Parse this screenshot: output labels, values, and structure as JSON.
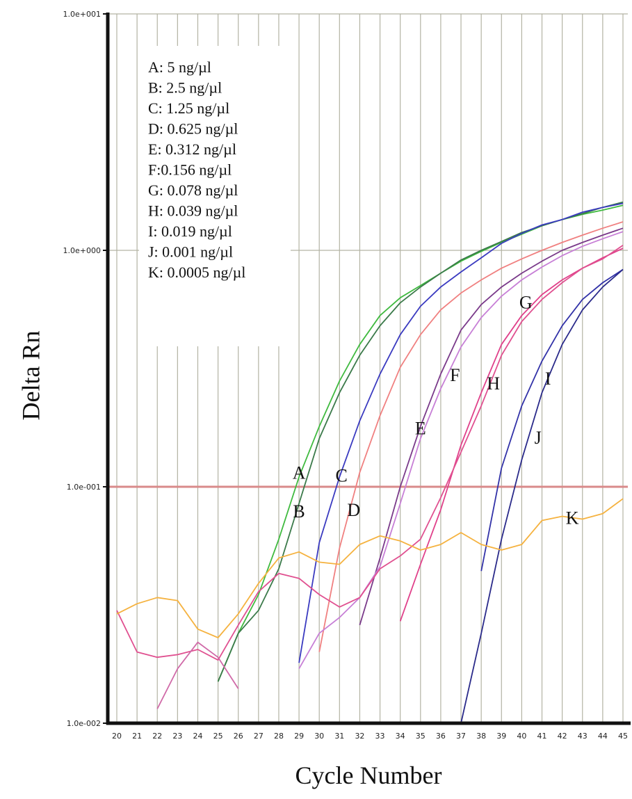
{
  "chart_data": {
    "type": "line",
    "xlabel": "Cycle Number",
    "ylabel": "Delta Rn",
    "y_scale": "log",
    "xlim": [
      20,
      45
    ],
    "ylim": [
      0.01,
      10
    ],
    "x_ticks": [
      "20",
      "21",
      "22",
      "23",
      "24",
      "25",
      "26",
      "27",
      "28",
      "29",
      "30",
      "31",
      "32",
      "33",
      "34",
      "35",
      "36",
      "37",
      "38",
      "39",
      "40",
      "41",
      "42",
      "43",
      "44",
      "45"
    ],
    "y_ticks": [
      {
        "value": 10,
        "label": "1.0e+001"
      },
      {
        "value": 1,
        "label": "1.0e+000"
      },
      {
        "value": 0.1,
        "label": "1.0e-001"
      },
      {
        "value": 0.01,
        "label": "1.0e-002"
      }
    ],
    "grid": "vertical",
    "threshold": {
      "value": 0.1,
      "color": "#d98a8a"
    },
    "legend": [
      "A: 5 ng/µl",
      "B:  2.5 ng/µl",
      "C: 1.25 ng/µl",
      "D: 0.625 ng/µl",
      "E: 0.312 ng/µl",
      "F:0.156 ng/µl",
      "G: 0.078 ng/µl",
      "H: 0.039 ng/µl",
      "I: 0.019 ng/µl",
      "J: 0.001 ng/µl",
      "K: 0.0005 ng/µl"
    ],
    "legend_position": "top-left",
    "series": [
      {
        "name": "A",
        "color": "#3fba3f",
        "label_at": [
          29.0,
          0.115
        ],
        "x": [
          25,
          26,
          27,
          28,
          29,
          30,
          31,
          32,
          33,
          34,
          35,
          36,
          37,
          38,
          39,
          40,
          41,
          42,
          43,
          44,
          45
        ],
        "y": [
          0.015,
          0.024,
          0.035,
          0.06,
          0.11,
          0.18,
          0.28,
          0.4,
          0.53,
          0.63,
          0.71,
          0.8,
          0.9,
          0.99,
          1.08,
          1.17,
          1.27,
          1.35,
          1.42,
          1.48,
          1.55
        ]
      },
      {
        "name": "B",
        "color": "#3b7a4a",
        "label_at": [
          29.0,
          0.079
        ],
        "x": [
          25,
          26,
          27,
          28,
          29,
          30,
          31,
          32,
          33,
          34,
          35,
          36,
          37,
          38,
          39,
          40,
          41,
          42,
          43,
          44,
          45
        ],
        "y": [
          0.015,
          0.024,
          0.03,
          0.045,
          0.085,
          0.16,
          0.25,
          0.36,
          0.48,
          0.6,
          0.7,
          0.8,
          0.91,
          1.0,
          1.09,
          1.19,
          1.27,
          1.35,
          1.43,
          1.52,
          1.6
        ]
      },
      {
        "name": "C",
        "color": "#3a3ac0",
        "label_at": [
          31.1,
          0.112
        ],
        "x": [
          29,
          30,
          31,
          32,
          33,
          34,
          35,
          36,
          37,
          38,
          39,
          40,
          41,
          42,
          43,
          44,
          45
        ],
        "y": [
          0.018,
          0.058,
          0.11,
          0.19,
          0.3,
          0.44,
          0.58,
          0.7,
          0.81,
          0.93,
          1.07,
          1.18,
          1.28,
          1.35,
          1.45,
          1.52,
          1.58
        ]
      },
      {
        "name": "D",
        "color": "#f08080",
        "label_at": [
          31.7,
          0.08
        ],
        "x": [
          30,
          31,
          32,
          33,
          34,
          35,
          36,
          37,
          38,
          39,
          40,
          41,
          42,
          43,
          44,
          45
        ],
        "y": [
          0.02,
          0.055,
          0.115,
          0.2,
          0.32,
          0.44,
          0.56,
          0.66,
          0.75,
          0.84,
          0.92,
          1.0,
          1.08,
          1.16,
          1.24,
          1.32
        ]
      },
      {
        "name": "E",
        "color": "#7a3a8a",
        "label_at": [
          35.0,
          0.177
        ],
        "x": [
          32,
          33,
          34,
          35,
          36,
          37,
          38,
          39,
          40,
          41,
          42,
          43,
          44,
          45
        ],
        "y": [
          0.026,
          0.05,
          0.1,
          0.18,
          0.3,
          0.46,
          0.59,
          0.7,
          0.8,
          0.9,
          1.0,
          1.08,
          1.16,
          1.24
        ]
      },
      {
        "name": "F",
        "color": "#c77fd6",
        "label_at": [
          36.7,
          0.298
        ],
        "x": [
          29,
          30,
          31,
          32,
          33,
          34,
          35,
          36,
          37,
          38,
          39,
          40,
          41,
          42,
          43,
          44,
          45
        ],
        "y": [
          0.017,
          0.024,
          0.028,
          0.034,
          0.046,
          0.085,
          0.16,
          0.26,
          0.39,
          0.52,
          0.64,
          0.75,
          0.85,
          0.95,
          1.04,
          1.12,
          1.2
        ]
      },
      {
        "name": "G",
        "color": "#e0408a",
        "label_at": [
          40.2,
          0.604
        ],
        "x": [
          34,
          35,
          36,
          37,
          38,
          39,
          40,
          41,
          42,
          43,
          44,
          45
        ],
        "y": [
          0.027,
          0.047,
          0.08,
          0.15,
          0.25,
          0.4,
          0.53,
          0.65,
          0.75,
          0.84,
          0.93,
          1.02
        ]
      },
      {
        "name": "H",
        "color": "#e05090",
        "label_at": [
          38.6,
          0.274
        ],
        "x": [
          20,
          21,
          22,
          23,
          24,
          25,
          26,
          27,
          28,
          29,
          30,
          31,
          32,
          33,
          34,
          35,
          36,
          37,
          38,
          39,
          40,
          41,
          42,
          43,
          44,
          45
        ],
        "y": [
          0.03,
          0.02,
          0.019,
          0.0195,
          0.0205,
          0.0185,
          0.026,
          0.036,
          0.043,
          0.041,
          0.035,
          0.031,
          0.034,
          0.045,
          0.051,
          0.06,
          0.09,
          0.14,
          0.22,
          0.36,
          0.5,
          0.62,
          0.73,
          0.84,
          0.92,
          1.05
        ]
      },
      {
        "name": "I",
        "color": "#3232a8",
        "label_at": [
          41.3,
          0.288
        ],
        "x": [
          38,
          39,
          40,
          41,
          42,
          43,
          44,
          45
        ],
        "y": [
          0.044,
          0.12,
          0.22,
          0.34,
          0.48,
          0.62,
          0.73,
          0.83
        ]
      },
      {
        "name": "J",
        "color": "#2a2a8a",
        "label_at": [
          40.8,
          0.162
        ],
        "x": [
          37,
          38,
          39,
          40,
          41,
          42,
          43,
          44,
          45
        ],
        "y": [
          0.01,
          0.024,
          0.06,
          0.13,
          0.25,
          0.4,
          0.56,
          0.7,
          0.83
        ]
      },
      {
        "name": "K",
        "color": "#f5b23f",
        "label_at": [
          42.5,
          0.074
        ],
        "x": [
          20,
          21,
          22,
          23,
          24,
          25,
          26,
          27,
          28,
          29,
          30,
          31,
          32,
          33,
          34,
          35,
          36,
          37,
          38,
          39,
          40,
          41,
          42,
          43,
          44,
          45
        ],
        "y": [
          0.029,
          0.032,
          0.034,
          0.033,
          0.025,
          0.023,
          0.029,
          0.039,
          0.05,
          0.053,
          0.048,
          0.047,
          0.057,
          0.062,
          0.059,
          0.054,
          0.057,
          0.064,
          0.057,
          0.054,
          0.057,
          0.072,
          0.075,
          0.073,
          0.077,
          0.089
        ]
      },
      {
        "name": "",
        "color": "#d06aa8",
        "x": [
          22,
          23,
          24,
          25,
          26
        ],
        "y": [
          0.0115,
          0.017,
          0.022,
          0.019,
          0.014
        ]
      }
    ]
  }
}
